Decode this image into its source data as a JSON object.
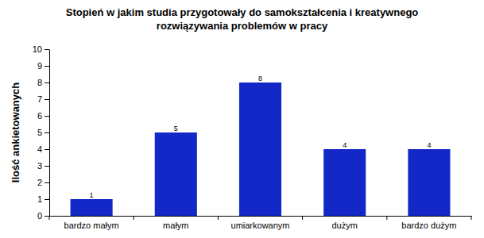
{
  "chart_data": {
    "type": "bar",
    "title": "Stopień w jakim studia przygotowały do samokształcenia i kreatywnego rozwiązywania problemów w pracy",
    "y_label": "Ilość ankietowanych",
    "categories": [
      "bardzo małym",
      "małym",
      "umiarkowanym",
      "dużym",
      "bardzo dużym"
    ],
    "values": [
      1,
      5,
      8,
      4,
      4
    ],
    "color": "#1428c8",
    "ylim": [
      0,
      10
    ],
    "yticks": [
      0,
      1,
      2,
      3,
      4,
      5,
      6,
      7,
      8,
      9,
      10
    ],
    "grid": false,
    "data_labels": true
  }
}
